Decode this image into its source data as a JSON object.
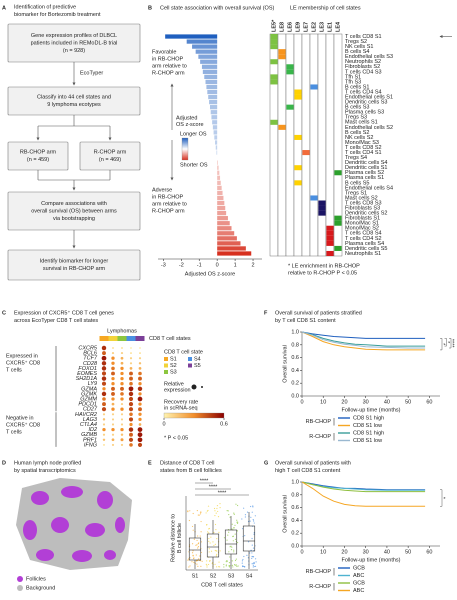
{
  "panel_a": {
    "label": "A",
    "title": [
      "Identification of predictive",
      "biomarker for Bortezomib treatment"
    ],
    "box1": [
      "Gene expression profiles of DLBCL",
      "patients included in REMoDL-B trial",
      "(n = 928)"
    ],
    "tool": "EcoTyper",
    "box2": [
      "Classify into 44 cell states and",
      "9 lymphoma ecotypes"
    ],
    "box3": [
      "RB-CHOP arm",
      "(n = 459)"
    ],
    "box4": [
      "R-CHOP arm",
      "(n = 469)"
    ],
    "box5": [
      "Compare associations with",
      "overall survival (OS) between arms",
      "via bootstrapping"
    ],
    "box6": [
      "Identify biomarker for longer",
      "survival in RB-CHOP arm"
    ]
  },
  "panel_b": {
    "label": "B",
    "title": "Cell state association with overall survival (OS)",
    "title2": "LE membership of cell states",
    "favorable": [
      "Favorable",
      "in RB-CHOP",
      "arm relative to",
      "R-CHOP arm"
    ],
    "adverse": [
      "Adverse",
      "in RB-CHOP",
      "arm relative to",
      "R-CHOP arm"
    ],
    "colorbar_title": [
      "Adjusted",
      "OS z-score"
    ],
    "longer": "Longer OS",
    "shorter": "Shorter OS",
    "xlabel": "Adjusted OS z-score",
    "xlim": [
      -3.3,
      2.5
    ],
    "xticks": [
      -3,
      -2,
      -1,
      0,
      1,
      2
    ],
    "ecotypes": [
      {
        "name": "LE5*",
        "color": "#7dc242"
      },
      {
        "name": "LE8",
        "color": "#f7941d"
      },
      {
        "name": "LE6",
        "color": "#39b54a"
      },
      {
        "name": "LE9",
        "color": "#ffd200"
      },
      {
        "name": "LE7",
        "color": "#f26b3a"
      },
      {
        "name": "LE2",
        "color": "#4a8fe0"
      },
      {
        "name": "LE3",
        "color": "#1b1464"
      },
      {
        "name": "LE1",
        "color": "#d7191c"
      },
      {
        "name": "LE4",
        "color": "#2ca02c"
      }
    ],
    "states": [
      "T cells CD8 S1",
      "Tregs S2",
      "NK cells S1",
      "B cells S4",
      "Endothelial cells S3",
      "Neutrophils S2",
      "Fibroblasts S2",
      "T cells CD4 S3",
      "Tfh S1",
      "Tfh S3",
      "B cells S1",
      "T cells CD4 S4",
      "Endothelial cells S1",
      "Dendritic cells S3",
      "B cells S3",
      "Plasma cells S3",
      "Tregs S3",
      "Mast cells S1",
      "Endothelial cells S2",
      "B cells S2",
      "NK cells S2",
      "Mono/Mac S3",
      "T cells CD8 S2",
      "T cells CD4 S1",
      "Tregs S4",
      "Dendritic cells S4",
      "Dendritic cells S1",
      "Plasma cells S2",
      "Plasma cells S1",
      "B cells S5",
      "Endothelial cells S4",
      "Tregs S1",
      "Mast cells S2",
      "T cells CD8 S3",
      "Fibroblasts S3",
      "Dendritic cells S2",
      "Fibroblasts S1",
      "Mono/Mac S1",
      "Mono/Mac S2",
      "T cells CD8 S4",
      "T cells CD4 S2",
      "Plasma cells S4",
      "Dendritic cells S5",
      "Neutrophils S1"
    ],
    "z": [
      -2.9,
      -1.7,
      -1.4,
      -1.2,
      -1.05,
      -0.95,
      -0.85,
      -0.8,
      -0.72,
      -0.65,
      -0.6,
      -0.55,
      -0.5,
      -0.45,
      -0.4,
      -0.36,
      -0.32,
      -0.28,
      -0.24,
      -0.2,
      -0.16,
      -0.12,
      -0.08,
      -0.04,
      0,
      0.04,
      0.08,
      0.12,
      0.16,
      0.2,
      0.25,
      0.3,
      0.35,
      0.4,
      0.45,
      0.5,
      0.6,
      0.7,
      0.8,
      0.95,
      1.1,
      1.3,
      1.6,
      1.9
    ],
    "membership": [
      0,
      0,
      0,
      1,
      1,
      0,
      2,
      2,
      0,
      0,
      5,
      3,
      3,
      null,
      2,
      null,
      null,
      0,
      1,
      null,
      3,
      null,
      null,
      4,
      null,
      null,
      3,
      8,
      null,
      3,
      null,
      null,
      5,
      6,
      6,
      6,
      8,
      8,
      7,
      7,
      7,
      7,
      8,
      7
    ],
    "footnote": [
      "* LE enrichment in RB-CHOP",
      "relative to R-CHOP P < 0.05"
    ]
  },
  "panel_c": {
    "label": "C",
    "title": [
      "Expression of CXCR5⁺ CD8 T cell genes",
      "across EcoTyper CD8 T cell states"
    ],
    "lymphomas": "Lymphomas",
    "states_label": "CD8 T cell states",
    "states": [
      {
        "name": "S1",
        "color": "#f7a823"
      },
      {
        "name": "S2",
        "color": "#f2d33a"
      },
      {
        "name": "S3",
        "color": "#8cc63f"
      },
      {
        "name": "S4",
        "color": "#4a90e2"
      },
      {
        "name": "S5",
        "color": "#7b3f98"
      }
    ],
    "genes": [
      "CXCR5",
      "BCL6",
      "TCF7",
      "CD28",
      "FOXO1",
      "EOMES",
      "SH2D1A",
      "LY9",
      "GZMA",
      "GZMK",
      "GZMM",
      "PDCD1",
      "CD27",
      "HAVCR2",
      "LAG3",
      "CTLA4",
      "ID2",
      "GZMB",
      "PRF1",
      "IFNG"
    ],
    "group1": [
      "Expressed in",
      "CXCR5⁺ CD8",
      "T cells"
    ],
    "group2": [
      "Negative in",
      "CXCR5⁺ CD8",
      "T cells"
    ],
    "recovery": [
      [
        0.5,
        0.05,
        0.05,
        0.02,
        0.02
      ],
      [
        0.4,
        0.1,
        0.1,
        0.05,
        0.05
      ],
      [
        0.55,
        0.3,
        0.2,
        0.1,
        0.1
      ],
      [
        0.5,
        0.3,
        0.2,
        0.1,
        0.15
      ],
      [
        0.5,
        0.35,
        0.3,
        0.2,
        0.2
      ],
      [
        0.45,
        0.4,
        0.3,
        0.4,
        0.35
      ],
      [
        0.5,
        0.3,
        0.3,
        0.4,
        0.4
      ],
      [
        0.45,
        0.3,
        0.3,
        0.35,
        0.3
      ],
      [
        0.3,
        0.4,
        0.4,
        0.55,
        0.5
      ],
      [
        0.5,
        0.4,
        0.35,
        0.5,
        0.3
      ],
      [
        0.35,
        0.3,
        0.3,
        0.45,
        0.55
      ],
      [
        0.4,
        0.2,
        0.1,
        0.45,
        0.3
      ],
      [
        0.45,
        0.3,
        0.3,
        0.45,
        0.4
      ],
      [
        0.1,
        0.1,
        0.1,
        0.35,
        0.3
      ],
      [
        0.15,
        0.1,
        0.1,
        0.45,
        0.3
      ],
      [
        0.1,
        0.1,
        0.1,
        0.3,
        0.2
      ],
      [
        0.3,
        0.3,
        0.3,
        0.5,
        0.55
      ],
      [
        0.1,
        0.1,
        0.15,
        0.4,
        0.55
      ],
      [
        0.15,
        0.2,
        0.25,
        0.45,
        0.55
      ],
      [
        0.05,
        0.1,
        0.1,
        0.35,
        0.45
      ]
    ],
    "legend_state": "CD8 T cell state",
    "legend_size": [
      "Relative",
      "expression"
    ],
    "legend_color": [
      "Recovery rate",
      "in scRNA-seq"
    ],
    "colorbar_ticks": [
      0,
      0.6
    ],
    "pnote": "* P < 0.05"
  },
  "panel_d": {
    "label": "D",
    "title": [
      "Human lymph node profiled",
      "by spatial transcriptomics"
    ],
    "legend": [
      "Follicles",
      "Background"
    ]
  },
  "panel_e": {
    "label": "E",
    "title": [
      "Distance of CD8 T cell",
      "states from B cell follicles"
    ],
    "ylabel": [
      "Relative distance to",
      "B cell follicle"
    ],
    "categories": [
      "S1",
      "S2",
      "S3",
      "S4"
    ],
    "xlabel": "CD8 T cell states",
    "sig": [
      "****",
      "****",
      "****"
    ]
  },
  "panel_f": {
    "label": "F",
    "title": [
      "Overall survival of patients stratified",
      "by T cell CD8 S1 content"
    ],
    "ylabel": "Overall survival",
    "xlabel": "Follow-up time (months)",
    "xlim": [
      0,
      65
    ],
    "ylim": [
      0,
      1
    ],
    "xticks": [
      0,
      10,
      20,
      30,
      40,
      50,
      60
    ],
    "yticks": [
      {
        "value": 0,
        "label": "0.0"
      },
      {
        "value": 0.2,
        "label": "0.2"
      },
      {
        "value": 0.4,
        "label": "0.4"
      },
      {
        "value": 0.6,
        "label": "0.6"
      },
      {
        "value": 0.8,
        "label": "0.8"
      },
      {
        "value": 1,
        "label": "1.0"
      }
    ],
    "x": [
      0,
      5,
      10,
      15,
      20,
      25,
      30,
      40,
      50,
      58
    ],
    "arms": [
      "RB-CHOP",
      "R-CHOP"
    ],
    "series": [
      {
        "name": "CD8 S1 high",
        "arm": 0,
        "color": "#1f5fbf",
        "values": [
          1,
          0.97,
          0.95,
          0.93,
          0.92,
          0.91,
          0.9,
          0.9,
          0.9,
          0.9
        ]
      },
      {
        "name": "CD8 S1 low",
        "arm": 0,
        "color": "#f5a623",
        "values": [
          1,
          0.93,
          0.85,
          0.8,
          0.77,
          0.75,
          0.73,
          0.72,
          0.72,
          0.72
        ]
      },
      {
        "name": "CD8 S1 high",
        "arm": 1,
        "color": "#3a9e9a",
        "values": [
          1,
          0.96,
          0.9,
          0.86,
          0.83,
          0.81,
          0.8,
          0.78,
          0.78,
          0.78
        ]
      },
      {
        "name": "CD8 S1 low",
        "arm": 1,
        "color": "#9ab8d0",
        "values": [
          1,
          0.95,
          0.88,
          0.84,
          0.81,
          0.79,
          0.77,
          0.76,
          0.75,
          0.75
        ]
      }
    ],
    "sig": [
      "*",
      "*",
      "****"
    ]
  },
  "panel_g": {
    "label": "G",
    "title": [
      "Overall survival of patients with",
      "high T cell CD8 S1 content"
    ],
    "ylabel": "Overall survival",
    "xlabel": "Follow-up time (months)",
    "xlim": [
      0,
      65
    ],
    "ylim": [
      0,
      1
    ],
    "xticks": [
      0,
      10,
      20,
      30,
      40,
      50,
      60
    ],
    "yticks": [
      {
        "value": 0,
        "label": "0.0"
      },
      {
        "value": 0.2,
        "label": "0.2"
      },
      {
        "value": 0.4,
        "label": "0.4"
      },
      {
        "value": 0.6,
        "label": "0.6"
      },
      {
        "value": 0.8,
        "label": "0.8"
      },
      {
        "value": 1,
        "label": "1.0"
      }
    ],
    "x": [
      0,
      5,
      10,
      15,
      20,
      25,
      30,
      40,
      50,
      58
    ],
    "arms": [
      "RB-CHOP",
      "R-CHOP"
    ],
    "series": [
      {
        "name": "GCB",
        "arm": 0,
        "color": "#1f5fbf",
        "values": [
          1,
          0.97,
          0.94,
          0.92,
          0.9,
          0.9,
          0.89,
          0.88,
          0.88,
          0.88
        ]
      },
      {
        "name": "ABC",
        "arm": 0,
        "color": "#4fb3d0",
        "values": [
          1,
          0.96,
          0.93,
          0.91,
          0.9,
          0.89,
          0.88,
          0.87,
          0.87,
          0.87
        ]
      },
      {
        "name": "GCB",
        "arm": 1,
        "color": "#8fbf3f",
        "values": [
          1,
          0.96,
          0.92,
          0.89,
          0.87,
          0.86,
          0.85,
          0.85,
          0.85,
          0.85
        ]
      },
      {
        "name": "ABC",
        "arm": 1,
        "color": "#f5a623",
        "values": [
          1,
          0.9,
          0.78,
          0.7,
          0.65,
          0.63,
          0.62,
          0.62,
          0.62,
          0.62
        ]
      }
    ],
    "sig": [
      "*"
    ]
  }
}
